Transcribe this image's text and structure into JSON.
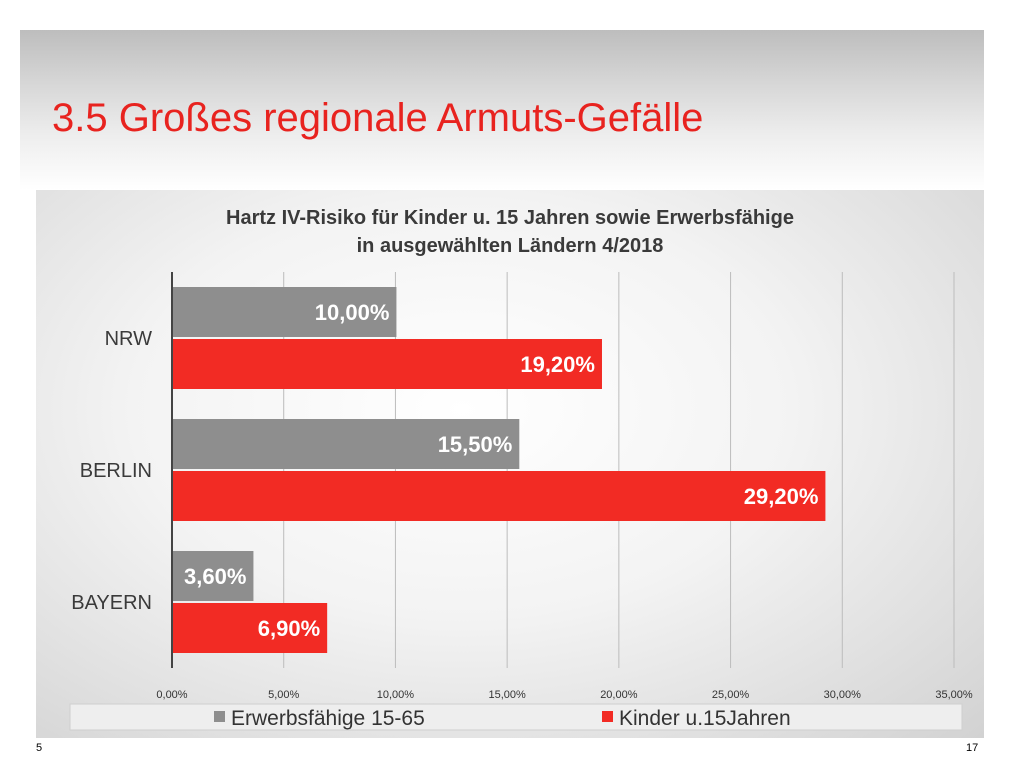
{
  "slide": {
    "title": "3.5 Großes regionale Armuts-Gefälle",
    "page_left": "5",
    "page_right": "17"
  },
  "colors": {
    "title": "#e8231f",
    "series_gray": "#8e8e8e",
    "series_red": "#f22b24"
  },
  "chart_data": {
    "type": "bar",
    "orientation": "horizontal",
    "title_line1": "Hartz IV-Risiko für Kinder u. 15 Jahren sowie Erwerbsfähige",
    "title_line2": "in ausgewählten Ländern 4/2018",
    "categories": [
      "NRW",
      "BERLIN",
      "BAYERN"
    ],
    "series": [
      {
        "name": "Erwerbsfähige 15-65",
        "color": "#8e8e8e",
        "values": [
          10.0,
          15.5,
          3.6
        ],
        "labels": [
          "10,00%",
          "15,50%",
          "3,60%"
        ]
      },
      {
        "name": "Kinder u.15Jahren",
        "color": "#f22b24",
        "values": [
          19.2,
          29.2,
          6.9
        ],
        "labels": [
          "19,20%",
          "29,20%",
          "6,90%"
        ]
      }
    ],
    "xlim": [
      0,
      35
    ],
    "xticks": [
      0,
      5,
      10,
      15,
      20,
      25,
      30,
      35
    ],
    "xtick_labels": [
      "0,00%",
      "5,00%",
      "10,00%",
      "15,00%",
      "20,00%",
      "25,00%",
      "30,00%",
      "35,00%"
    ],
    "grid": true,
    "legend_position": "bottom"
  }
}
